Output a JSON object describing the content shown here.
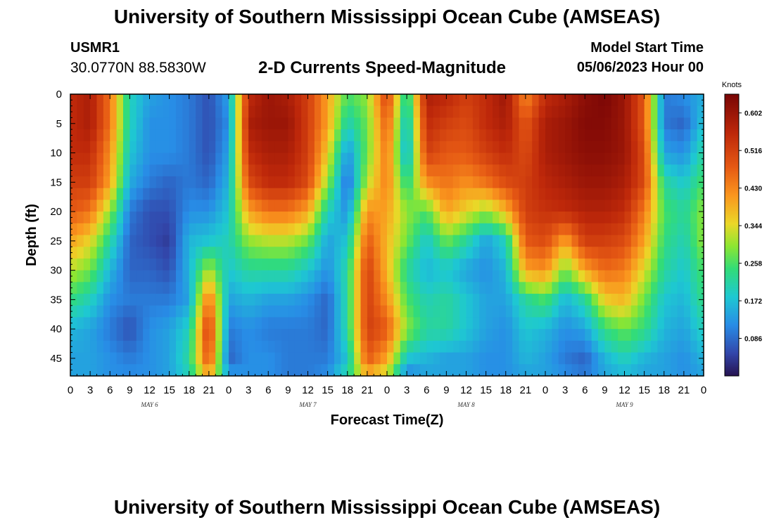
{
  "header": {
    "title": "University of Southern Mississippi Ocean Cube (AMSEAS)",
    "station_id": "USMR1",
    "coords": "30.0770N  88.5830W",
    "plot_title": "2-D Currents Speed-Magnitude",
    "model_start_label": "Model Start Time",
    "model_start_value": "05/06/2023 Hour 00"
  },
  "footer": {
    "title": "University of Southern Mississippi Ocean Cube (AMSEAS)"
  },
  "chart_data": {
    "type": "heatmap",
    "title": "2-D Currents Speed-Magnitude",
    "xlabel": "Forecast Time(Z)",
    "ylabel": "Depth (ft)",
    "x_tick_labels": [
      "0",
      "3",
      "6",
      "9",
      "12",
      "15",
      "18",
      "21",
      "0",
      "3",
      "6",
      "9",
      "12",
      "15",
      "18",
      "21",
      "0",
      "3",
      "6",
      "9",
      "12",
      "15",
      "18",
      "21",
      "0",
      "3",
      "6",
      "9",
      "12",
      "15",
      "18",
      "21",
      "0"
    ],
    "x_range_hours": [
      0,
      96
    ],
    "day_labels": [
      {
        "label": "MAY 6",
        "hour": 12
      },
      {
        "label": "MAY 7",
        "hour": 36
      },
      {
        "label": "MAY 8",
        "hour": 60
      },
      {
        "label": "MAY 9",
        "hour": 84
      }
    ],
    "y_tick_labels": [
      "0",
      "5",
      "10",
      "15",
      "20",
      "25",
      "30",
      "35",
      "40",
      "45"
    ],
    "y_range": [
      0,
      48
    ],
    "colorbar": {
      "label": "Knots",
      "range": [
        0.0,
        0.645
      ],
      "ticks": [
        "0.602",
        "0.516",
        "0.430",
        "0.344",
        "0.258",
        "0.172",
        "0.086"
      ],
      "tick_values": [
        0.602,
        0.516,
        0.43,
        0.344,
        0.258,
        0.172,
        0.086
      ]
    },
    "grid_depth_rows": [
      0,
      5,
      10,
      15,
      20,
      25,
      30,
      35,
      40,
      45,
      48
    ],
    "grid_time_hours": [
      0,
      3,
      6,
      9,
      12,
      15,
      18,
      21,
      24,
      27,
      30,
      33,
      36,
      39,
      42,
      45,
      48,
      51,
      54,
      57,
      60,
      63,
      66,
      69,
      72,
      75,
      78,
      81,
      84,
      87,
      90,
      93,
      96
    ],
    "values_by_depth": [
      [
        0.55,
        0.58,
        0.45,
        0.2,
        0.14,
        0.12,
        0.1,
        0.06,
        0.14,
        0.55,
        0.6,
        0.58,
        0.52,
        0.4,
        0.26,
        0.3,
        0.52,
        0.2,
        0.58,
        0.56,
        0.52,
        0.55,
        0.6,
        0.42,
        0.55,
        0.58,
        0.62,
        0.64,
        0.6,
        0.48,
        0.1,
        0.12,
        0.15
      ],
      [
        0.55,
        0.58,
        0.45,
        0.2,
        0.12,
        0.12,
        0.1,
        0.06,
        0.12,
        0.58,
        0.6,
        0.6,
        0.52,
        0.4,
        0.2,
        0.28,
        0.48,
        0.16,
        0.55,
        0.52,
        0.5,
        0.55,
        0.58,
        0.48,
        0.58,
        0.6,
        0.63,
        0.63,
        0.6,
        0.48,
        0.1,
        0.08,
        0.18
      ],
      [
        0.55,
        0.55,
        0.42,
        0.18,
        0.12,
        0.12,
        0.1,
        0.06,
        0.14,
        0.55,
        0.58,
        0.58,
        0.52,
        0.36,
        0.12,
        0.28,
        0.45,
        0.14,
        0.52,
        0.48,
        0.48,
        0.52,
        0.55,
        0.5,
        0.58,
        0.6,
        0.62,
        0.62,
        0.6,
        0.5,
        0.14,
        0.12,
        0.22
      ],
      [
        0.52,
        0.52,
        0.4,
        0.15,
        0.1,
        0.08,
        0.1,
        0.08,
        0.16,
        0.5,
        0.55,
        0.55,
        0.5,
        0.3,
        0.08,
        0.32,
        0.44,
        0.22,
        0.42,
        0.45,
        0.42,
        0.45,
        0.5,
        0.52,
        0.56,
        0.58,
        0.6,
        0.6,
        0.58,
        0.5,
        0.22,
        0.18,
        0.26
      ],
      [
        0.48,
        0.45,
        0.3,
        0.1,
        0.06,
        0.06,
        0.12,
        0.12,
        0.18,
        0.4,
        0.45,
        0.45,
        0.4,
        0.2,
        0.12,
        0.42,
        0.4,
        0.3,
        0.26,
        0.4,
        0.35,
        0.3,
        0.38,
        0.52,
        0.54,
        0.55,
        0.57,
        0.57,
        0.55,
        0.44,
        0.26,
        0.22,
        0.3
      ],
      [
        0.4,
        0.35,
        0.22,
        0.08,
        0.06,
        0.04,
        0.16,
        0.18,
        0.2,
        0.3,
        0.32,
        0.32,
        0.28,
        0.14,
        0.18,
        0.48,
        0.38,
        0.28,
        0.18,
        0.28,
        0.22,
        0.14,
        0.2,
        0.48,
        0.5,
        0.4,
        0.52,
        0.52,
        0.5,
        0.4,
        0.24,
        0.2,
        0.3
      ],
      [
        0.32,
        0.28,
        0.16,
        0.08,
        0.08,
        0.06,
        0.16,
        0.32,
        0.18,
        0.22,
        0.22,
        0.22,
        0.18,
        0.12,
        0.22,
        0.52,
        0.38,
        0.22,
        0.16,
        0.18,
        0.14,
        0.12,
        0.16,
        0.4,
        0.42,
        0.28,
        0.4,
        0.46,
        0.44,
        0.34,
        0.22,
        0.18,
        0.26
      ],
      [
        0.24,
        0.2,
        0.12,
        0.1,
        0.1,
        0.1,
        0.14,
        0.46,
        0.14,
        0.16,
        0.14,
        0.14,
        0.12,
        0.08,
        0.22,
        0.52,
        0.42,
        0.26,
        0.2,
        0.22,
        0.18,
        0.14,
        0.14,
        0.22,
        0.26,
        0.16,
        0.22,
        0.36,
        0.38,
        0.28,
        0.18,
        0.16,
        0.24
      ],
      [
        0.16,
        0.14,
        0.1,
        0.06,
        0.12,
        0.14,
        0.2,
        0.54,
        0.1,
        0.12,
        0.1,
        0.1,
        0.1,
        0.08,
        0.22,
        0.52,
        0.48,
        0.3,
        0.22,
        0.22,
        0.18,
        0.14,
        0.12,
        0.18,
        0.16,
        0.12,
        0.14,
        0.24,
        0.28,
        0.24,
        0.16,
        0.14,
        0.2
      ],
      [
        0.14,
        0.14,
        0.12,
        0.1,
        0.12,
        0.14,
        0.22,
        0.5,
        0.08,
        0.12,
        0.12,
        0.1,
        0.1,
        0.1,
        0.18,
        0.48,
        0.4,
        0.18,
        0.16,
        0.14,
        0.14,
        0.12,
        0.12,
        0.16,
        0.14,
        0.1,
        0.08,
        0.16,
        0.2,
        0.16,
        0.14,
        0.12,
        0.16
      ],
      [
        0.14,
        0.14,
        0.12,
        0.12,
        0.12,
        0.14,
        0.2,
        0.4,
        0.14,
        0.12,
        0.12,
        0.1,
        0.1,
        0.12,
        0.22,
        0.38,
        0.32,
        0.1,
        0.14,
        0.14,
        0.14,
        0.12,
        0.12,
        0.14,
        0.14,
        0.12,
        0.1,
        0.14,
        0.16,
        0.14,
        0.14,
        0.12,
        0.14
      ]
    ]
  }
}
